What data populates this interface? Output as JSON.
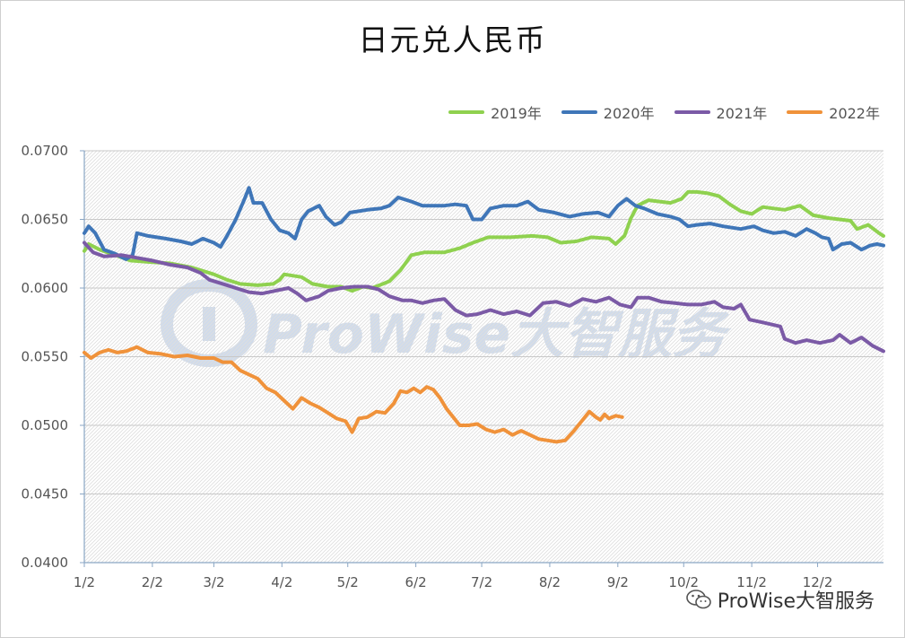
{
  "chart_data": {
    "type": "line",
    "title": "日元兑人民币",
    "xlabel": "",
    "ylabel": "",
    "ylim": [
      0.04,
      0.07
    ],
    "y_ticks": [
      "0.0400",
      "0.0450",
      "0.0500",
      "0.0550",
      "0.0600",
      "0.0650",
      "0.0700"
    ],
    "x_ticks": [
      "1/2",
      "2/2",
      "3/2",
      "4/2",
      "5/2",
      "6/2",
      "7/2",
      "8/2",
      "9/2",
      "10/2",
      "11/2",
      "12/2"
    ],
    "x_range_days": [
      1,
      365
    ],
    "legend_position": "top-right",
    "grid": true,
    "series": [
      {
        "name": "2019年",
        "color": "#8fd14f",
        "points": [
          [
            1,
            0.0627
          ],
          [
            3,
            0.0632
          ],
          [
            8,
            0.0628
          ],
          [
            15,
            0.0624
          ],
          [
            22,
            0.062
          ],
          [
            30,
            0.0619
          ],
          [
            40,
            0.0618
          ],
          [
            50,
            0.0615
          ],
          [
            60,
            0.061
          ],
          [
            66,
            0.0606
          ],
          [
            72,
            0.0603
          ],
          [
            80,
            0.0602
          ],
          [
            87,
            0.0603
          ],
          [
            90,
            0.0606
          ],
          [
            92,
            0.061
          ],
          [
            100,
            0.0608
          ],
          [
            105,
            0.0603
          ],
          [
            112,
            0.0601
          ],
          [
            118,
            0.0601
          ],
          [
            123,
            0.0598
          ],
          [
            128,
            0.0601
          ],
          [
            132,
            0.06
          ],
          [
            137,
            0.0603
          ],
          [
            140,
            0.0605
          ],
          [
            145,
            0.0613
          ],
          [
            150,
            0.0624
          ],
          [
            156,
            0.0626
          ],
          [
            165,
            0.0626
          ],
          [
            172,
            0.0629
          ],
          [
            178,
            0.0633
          ],
          [
            185,
            0.0637
          ],
          [
            195,
            0.0637
          ],
          [
            205,
            0.0638
          ],
          [
            212,
            0.0637
          ],
          [
            218,
            0.0633
          ],
          [
            225,
            0.0634
          ],
          [
            232,
            0.0637
          ],
          [
            240,
            0.0636
          ],
          [
            243,
            0.0632
          ],
          [
            247,
            0.0638
          ],
          [
            250,
            0.0651
          ],
          [
            253,
            0.066
          ],
          [
            258,
            0.0664
          ],
          [
            263,
            0.0663
          ],
          [
            268,
            0.0662
          ],
          [
            273,
            0.0665
          ],
          [
            276,
            0.067
          ],
          [
            280,
            0.067
          ],
          [
            285,
            0.0669
          ],
          [
            290,
            0.0667
          ],
          [
            295,
            0.0661
          ],
          [
            300,
            0.0656
          ],
          [
            305,
            0.0654
          ],
          [
            310,
            0.0659
          ],
          [
            315,
            0.0658
          ],
          [
            320,
            0.0657
          ],
          [
            327,
            0.066
          ],
          [
            333,
            0.0653
          ],
          [
            340,
            0.0651
          ],
          [
            350,
            0.0649
          ],
          [
            353,
            0.0643
          ],
          [
            358,
            0.0646
          ],
          [
            363,
            0.064
          ],
          [
            365,
            0.0638
          ]
        ]
      },
      {
        "name": "2020年",
        "color": "#3f76b8",
        "points": [
          [
            1,
            0.064
          ],
          [
            3,
            0.0645
          ],
          [
            6,
            0.064
          ],
          [
            10,
            0.0628
          ],
          [
            15,
            0.0625
          ],
          [
            20,
            0.0621
          ],
          [
            23,
            0.0624
          ],
          [
            25,
            0.064
          ],
          [
            30,
            0.0638
          ],
          [
            38,
            0.0636
          ],
          [
            45,
            0.0634
          ],
          [
            50,
            0.0632
          ],
          [
            55,
            0.0636
          ],
          [
            60,
            0.0633
          ],
          [
            63,
            0.063
          ],
          [
            66,
            0.0638
          ],
          [
            70,
            0.065
          ],
          [
            74,
            0.0665
          ],
          [
            76,
            0.0673
          ],
          [
            78,
            0.0662
          ],
          [
            82,
            0.0662
          ],
          [
            86,
            0.065
          ],
          [
            90,
            0.0642
          ],
          [
            94,
            0.064
          ],
          [
            97,
            0.0636
          ],
          [
            100,
            0.065
          ],
          [
            103,
            0.0656
          ],
          [
            108,
            0.066
          ],
          [
            111,
            0.0652
          ],
          [
            115,
            0.0646
          ],
          [
            118,
            0.0648
          ],
          [
            122,
            0.0655
          ],
          [
            130,
            0.0657
          ],
          [
            136,
            0.0658
          ],
          [
            140,
            0.066
          ],
          [
            144,
            0.0666
          ],
          [
            150,
            0.0663
          ],
          [
            155,
            0.066
          ],
          [
            160,
            0.066
          ],
          [
            165,
            0.066
          ],
          [
            170,
            0.0661
          ],
          [
            175,
            0.066
          ],
          [
            178,
            0.065
          ],
          [
            182,
            0.065
          ],
          [
            186,
            0.0658
          ],
          [
            192,
            0.066
          ],
          [
            198,
            0.066
          ],
          [
            203,
            0.0663
          ],
          [
            208,
            0.0657
          ],
          [
            215,
            0.0655
          ],
          [
            222,
            0.0652
          ],
          [
            228,
            0.0654
          ],
          [
            235,
            0.0655
          ],
          [
            240,
            0.0652
          ],
          [
            244,
            0.066
          ],
          [
            248,
            0.0665
          ],
          [
            252,
            0.066
          ],
          [
            256,
            0.0658
          ],
          [
            262,
            0.0654
          ],
          [
            268,
            0.0652
          ],
          [
            272,
            0.065
          ],
          [
            276,
            0.0645
          ],
          [
            280,
            0.0646
          ],
          [
            286,
            0.0647
          ],
          [
            292,
            0.0645
          ],
          [
            300,
            0.0643
          ],
          [
            306,
            0.0645
          ],
          [
            310,
            0.0642
          ],
          [
            315,
            0.064
          ],
          [
            320,
            0.0641
          ],
          [
            325,
            0.0638
          ],
          [
            330,
            0.0643
          ],
          [
            334,
            0.064
          ],
          [
            337,
            0.0637
          ],
          [
            340,
            0.0636
          ],
          [
            342,
            0.0628
          ],
          [
            346,
            0.0632
          ],
          [
            350,
            0.0633
          ],
          [
            355,
            0.0628
          ],
          [
            359,
            0.0631
          ],
          [
            362,
            0.0632
          ],
          [
            365,
            0.0631
          ]
        ]
      },
      {
        "name": "2021年",
        "color": "#7b5aa6",
        "points": [
          [
            1,
            0.0633
          ],
          [
            5,
            0.0626
          ],
          [
            10,
            0.0623
          ],
          [
            18,
            0.0624
          ],
          [
            25,
            0.0622
          ],
          [
            32,
            0.062
          ],
          [
            40,
            0.0617
          ],
          [
            48,
            0.0615
          ],
          [
            54,
            0.0611
          ],
          [
            58,
            0.0606
          ],
          [
            64,
            0.0603
          ],
          [
            70,
            0.06
          ],
          [
            76,
            0.0597
          ],
          [
            82,
            0.0596
          ],
          [
            88,
            0.0598
          ],
          [
            94,
            0.06
          ],
          [
            98,
            0.0596
          ],
          [
            102,
            0.0591
          ],
          [
            108,
            0.0594
          ],
          [
            112,
            0.0598
          ],
          [
            118,
            0.06
          ],
          [
            124,
            0.0601
          ],
          [
            130,
            0.0601
          ],
          [
            135,
            0.0599
          ],
          [
            140,
            0.0594
          ],
          [
            146,
            0.0591
          ],
          [
            150,
            0.0591
          ],
          [
            155,
            0.0589
          ],
          [
            160,
            0.0591
          ],
          [
            165,
            0.0592
          ],
          [
            170,
            0.0584
          ],
          [
            175,
            0.058
          ],
          [
            180,
            0.0581
          ],
          [
            186,
            0.0584
          ],
          [
            192,
            0.0581
          ],
          [
            198,
            0.0583
          ],
          [
            204,
            0.058
          ],
          [
            210,
            0.0589
          ],
          [
            216,
            0.059
          ],
          [
            222,
            0.0587
          ],
          [
            228,
            0.0592
          ],
          [
            234,
            0.059
          ],
          [
            240,
            0.0593
          ],
          [
            245,
            0.0588
          ],
          [
            250,
            0.0586
          ],
          [
            253,
            0.0593
          ],
          [
            258,
            0.0593
          ],
          [
            264,
            0.059
          ],
          [
            270,
            0.0589
          ],
          [
            276,
            0.0588
          ],
          [
            282,
            0.0588
          ],
          [
            288,
            0.059
          ],
          [
            292,
            0.0586
          ],
          [
            297,
            0.0585
          ],
          [
            300,
            0.0588
          ],
          [
            304,
            0.0577
          ],
          [
            310,
            0.0575
          ],
          [
            318,
            0.0572
          ],
          [
            320,
            0.0563
          ],
          [
            325,
            0.056
          ],
          [
            330,
            0.0562
          ],
          [
            336,
            0.056
          ],
          [
            342,
            0.0562
          ],
          [
            345,
            0.0566
          ],
          [
            350,
            0.056
          ],
          [
            355,
            0.0564
          ],
          [
            360,
            0.0558
          ],
          [
            365,
            0.0554
          ]
        ]
      },
      {
        "name": "2022年",
        "color": "#f0923a",
        "points": [
          [
            1,
            0.0553
          ],
          [
            4,
            0.0549
          ],
          [
            8,
            0.0553
          ],
          [
            12,
            0.0555
          ],
          [
            16,
            0.0553
          ],
          [
            20,
            0.0554
          ],
          [
            25,
            0.0557
          ],
          [
            30,
            0.0553
          ],
          [
            36,
            0.0552
          ],
          [
            42,
            0.055
          ],
          [
            48,
            0.0551
          ],
          [
            54,
            0.0549
          ],
          [
            60,
            0.0549
          ],
          [
            64,
            0.0546
          ],
          [
            68,
            0.0546
          ],
          [
            72,
            0.054
          ],
          [
            76,
            0.0537
          ],
          [
            80,
            0.0534
          ],
          [
            84,
            0.0527
          ],
          [
            88,
            0.0524
          ],
          [
            92,
            0.0518
          ],
          [
            96,
            0.0512
          ],
          [
            100,
            0.052
          ],
          [
            104,
            0.0516
          ],
          [
            108,
            0.0513
          ],
          [
            112,
            0.0509
          ],
          [
            116,
            0.0505
          ],
          [
            120,
            0.0503
          ],
          [
            123,
            0.0495
          ],
          [
            126,
            0.0505
          ],
          [
            130,
            0.0506
          ],
          [
            134,
            0.051
          ],
          [
            138,
            0.0509
          ],
          [
            142,
            0.0516
          ],
          [
            145,
            0.0525
          ],
          [
            148,
            0.0524
          ],
          [
            151,
            0.0527
          ],
          [
            154,
            0.0524
          ],
          [
            157,
            0.0528
          ],
          [
            160,
            0.0526
          ],
          [
            163,
            0.052
          ],
          [
            166,
            0.0512
          ],
          [
            169,
            0.0506
          ],
          [
            172,
            0.05
          ],
          [
            176,
            0.05
          ],
          [
            180,
            0.0501
          ],
          [
            184,
            0.0497
          ],
          [
            188,
            0.0495
          ],
          [
            192,
            0.0497
          ],
          [
            196,
            0.0493
          ],
          [
            200,
            0.0496
          ],
          [
            204,
            0.0493
          ],
          [
            208,
            0.049
          ],
          [
            212,
            0.0489
          ],
          [
            216,
            0.0488
          ],
          [
            220,
            0.0489
          ],
          [
            224,
            0.0496
          ],
          [
            228,
            0.0504
          ],
          [
            231,
            0.051
          ],
          [
            234,
            0.0506
          ],
          [
            236,
            0.0504
          ],
          [
            238,
            0.0508
          ],
          [
            240,
            0.0505
          ],
          [
            243,
            0.0507
          ],
          [
            246,
            0.0506
          ]
        ]
      }
    ]
  },
  "watermark": {
    "text": "ProWise大智服务"
  },
  "footer": {
    "text": "ProWise大智服务",
    "icon": "wechat-icon"
  }
}
